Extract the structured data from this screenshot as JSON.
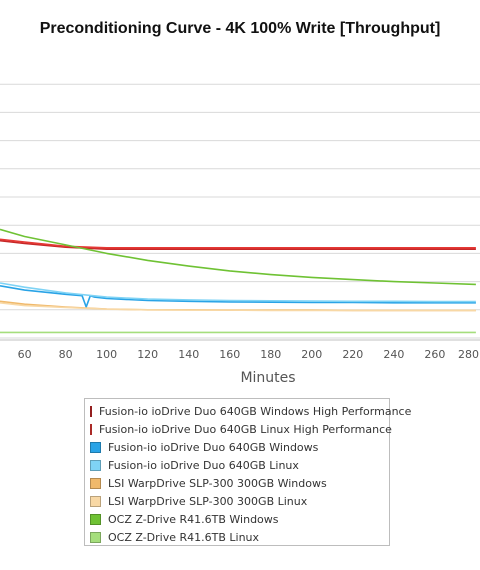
{
  "chart_data": {
    "type": "line",
    "title": "Preconditioning Curve - 4K 100% Write [Throughput]",
    "xlabel": "Minutes",
    "ylabel": "",
    "xlim": [
      48,
      282
    ],
    "ylim": [
      0,
      10
    ],
    "x_ticks": [
      60,
      80,
      100,
      120,
      140,
      160,
      180,
      200,
      220,
      240,
      260,
      280
    ],
    "y_ticks": [
      0,
      1,
      2,
      3,
      4,
      5,
      6,
      7,
      8,
      9
    ],
    "grid": true,
    "legend_position": "bottom",
    "series": [
      {
        "name": "Fusion-io ioDrive Duo 640GB Windows High Performance",
        "color": "#c62828",
        "x": [
          48,
          60,
          80,
          100,
          120,
          140,
          160,
          180,
          200,
          220,
          240,
          260,
          280
        ],
        "y": [
          3.45,
          3.35,
          3.22,
          3.15,
          3.15,
          3.15,
          3.15,
          3.15,
          3.15,
          3.15,
          3.15,
          3.15,
          3.15
        ]
      },
      {
        "name": "Fusion-io ioDrive Duo 640GB Linux High Performance",
        "color": "#e53935",
        "x": [
          48,
          60,
          80,
          100,
          120,
          140,
          160,
          180,
          200,
          220,
          240,
          260,
          280
        ],
        "y": [
          3.5,
          3.4,
          3.25,
          3.2,
          3.2,
          3.2,
          3.2,
          3.2,
          3.2,
          3.2,
          3.2,
          3.2,
          3.2
        ]
      },
      {
        "name": "Fusion-io ioDrive Duo 640GB Windows",
        "color": "#29a3e6",
        "x": [
          48,
          60,
          80,
          88,
          90,
          92,
          94,
          100,
          120,
          140,
          160,
          180,
          200,
          220,
          240,
          260,
          280
        ],
        "y": [
          1.85,
          1.7,
          1.55,
          1.5,
          1.1,
          1.5,
          1.45,
          1.4,
          1.33,
          1.3,
          1.28,
          1.27,
          1.26,
          1.26,
          1.25,
          1.25,
          1.25
        ]
      },
      {
        "name": "Fusion-io ioDrive Duo 640GB Linux",
        "color": "#7fd3f5",
        "x": [
          48,
          60,
          80,
          100,
          120,
          140,
          160,
          180,
          200,
          220,
          240,
          260,
          280
        ],
        "y": [
          1.95,
          1.8,
          1.6,
          1.45,
          1.38,
          1.35,
          1.33,
          1.32,
          1.31,
          1.3,
          1.3,
          1.29,
          1.29
        ]
      },
      {
        "name": "LSI WarpDrive SLP-300 300GB Windows",
        "color": "#f0b96b",
        "x": [
          48,
          60,
          80,
          100,
          120,
          140,
          160,
          180,
          200,
          220,
          240,
          260,
          280
        ],
        "y": [
          1.3,
          1.2,
          1.1,
          1.03,
          1.0,
          1.0,
          0.99,
          0.99,
          0.99,
          0.98,
          0.98,
          0.98,
          0.98
        ]
      },
      {
        "name": "LSI WarpDrive SLP-300 300GB Linux",
        "color": "#f8d8a5",
        "x": [
          48,
          60,
          80,
          100,
          120,
          140,
          160,
          180,
          200,
          220,
          240,
          260,
          280
        ],
        "y": [
          1.25,
          1.15,
          1.08,
          1.02,
          1.0,
          0.99,
          0.99,
          0.98,
          0.98,
          0.98,
          0.98,
          0.98,
          0.98
        ]
      },
      {
        "name": "OCZ Z-Drive R41.6TB Windows",
        "color": "#6fc234",
        "x": [
          48,
          60,
          80,
          100,
          120,
          140,
          160,
          180,
          200,
          220,
          240,
          260,
          280
        ],
        "y": [
          3.85,
          3.6,
          3.3,
          3.0,
          2.75,
          2.55,
          2.38,
          2.25,
          2.15,
          2.07,
          2.0,
          1.95,
          1.9
        ]
      },
      {
        "name": "OCZ Z-Drive R41.6TB Linux",
        "color": "#a5de7c",
        "x": [
          48,
          60,
          80,
          100,
          120,
          140,
          160,
          180,
          200,
          220,
          240,
          260,
          280
        ],
        "y": [
          0.2,
          0.2,
          0.2,
          0.2,
          0.2,
          0.2,
          0.2,
          0.2,
          0.2,
          0.2,
          0.2,
          0.2,
          0.2
        ]
      }
    ]
  }
}
